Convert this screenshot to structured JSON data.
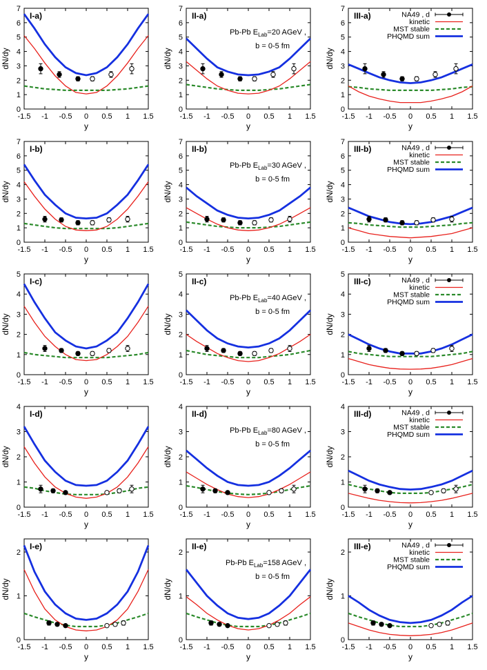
{
  "figure": {
    "x_label": "y",
    "y_label": "dN/dy",
    "legend_labels": [
      "NA49 , d",
      "kinetic",
      "MST stable",
      "PHQMD sum"
    ],
    "annotation_system": "Pb-Pb E",
    "annotation_sub": "Lab",
    "annotation_impact": "b = 0-5 fm",
    "colors": {
      "data": "#000000",
      "kinetic": "#e8201b",
      "mst": "#2a8a2a",
      "phqmd": "#1530e0"
    }
  },
  "chart_data": [
    {
      "type": "line",
      "row_label": "a",
      "energy": "20 AGeV",
      "ylim": [
        0,
        7
      ],
      "yticks": [
        0,
        1,
        2,
        3,
        4,
        5,
        6,
        7
      ],
      "xlim": [
        -1.5,
        1.5
      ],
      "xticks": [
        "-1.5",
        "-1",
        "-0.5",
        "0",
        "0.5",
        "1",
        "1.5"
      ],
      "data_points_filled": {
        "x": [
          -1.1,
          -0.65,
          -0.2
        ],
        "y": [
          2.8,
          2.4,
          2.1
        ],
        "err": [
          0.35,
          0.2,
          0.15
        ]
      },
      "data_points_open": {
        "x": [
          0.15,
          0.6,
          1.1
        ],
        "y": [
          2.1,
          2.4,
          2.8
        ],
        "err": [
          0.15,
          0.2,
          0.35
        ]
      },
      "panels": [
        {
          "label": "I-a)",
          "kinetic": [
            5.1,
            4.2,
            3.2,
            2.3,
            1.6,
            1.15,
            1.05,
            1.15,
            1.6,
            2.3,
            3.2,
            4.2,
            5.1
          ],
          "mst": [
            1.6,
            1.5,
            1.4,
            1.35,
            1.3,
            1.3,
            1.3,
            1.3,
            1.3,
            1.35,
            1.4,
            1.5,
            1.6
          ],
          "phqmd": [
            6.6,
            5.6,
            4.5,
            3.6,
            2.9,
            2.5,
            2.35,
            2.5,
            2.9,
            3.6,
            4.5,
            5.6,
            6.6
          ]
        },
        {
          "label": "II-a)",
          "kinetic": [
            3.3,
            2.7,
            2.1,
            1.6,
            1.3,
            1.1,
            1.05,
            1.1,
            1.3,
            1.6,
            2.1,
            2.7,
            3.3
          ],
          "mst": [
            1.7,
            1.6,
            1.5,
            1.4,
            1.35,
            1.3,
            1.3,
            1.3,
            1.35,
            1.4,
            1.5,
            1.6,
            1.7
          ],
          "phqmd": [
            4.9,
            4.2,
            3.5,
            2.9,
            2.6,
            2.4,
            2.35,
            2.4,
            2.6,
            2.9,
            3.5,
            4.2,
            4.9
          ]
        },
        {
          "label": "III-a)",
          "kinetic": [
            1.6,
            1.2,
            0.9,
            0.7,
            0.55,
            0.45,
            0.45,
            0.45,
            0.55,
            0.7,
            0.9,
            1.2,
            1.6
          ],
          "mst": [
            1.55,
            1.5,
            1.4,
            1.35,
            1.3,
            1.3,
            1.3,
            1.3,
            1.3,
            1.35,
            1.4,
            1.5,
            1.55
          ],
          "phqmd": [
            3.1,
            2.8,
            2.5,
            2.2,
            2.0,
            1.85,
            1.8,
            1.85,
            2.0,
            2.2,
            2.5,
            2.8,
            3.1
          ]
        }
      ]
    },
    {
      "type": "line",
      "row_label": "b",
      "energy": "30 AGeV",
      "ylim": [
        0,
        7
      ],
      "yticks": [
        0,
        1,
        2,
        3,
        4,
        5,
        6,
        7
      ],
      "xlim": [
        -1.5,
        1.5
      ],
      "xticks": [
        "-1.5",
        "-1",
        "-0.5",
        "0",
        "0.5",
        "1",
        "1.5"
      ],
      "data_points_filled": {
        "x": [
          -1.0,
          -0.6,
          -0.2
        ],
        "y": [
          1.6,
          1.55,
          1.35
        ],
        "err": [
          0.2,
          0.15,
          0.15
        ]
      },
      "data_points_open": {
        "x": [
          0.15,
          0.55,
          1.0
        ],
        "y": [
          1.35,
          1.55,
          1.6
        ],
        "err": [
          0.15,
          0.15,
          0.2
        ]
      },
      "panels": [
        {
          "label": "I-b)",
          "kinetic": [
            4.2,
            3.2,
            2.3,
            1.6,
            1.1,
            0.85,
            0.8,
            0.85,
            1.1,
            1.6,
            2.3,
            3.2,
            4.2
          ],
          "mst": [
            1.3,
            1.2,
            1.1,
            1.0,
            0.95,
            0.95,
            0.95,
            0.95,
            0.95,
            1.0,
            1.1,
            1.2,
            1.3
          ],
          "phqmd": [
            5.4,
            4.3,
            3.3,
            2.6,
            2.0,
            1.7,
            1.65,
            1.7,
            2.0,
            2.6,
            3.3,
            4.3,
            5.4
          ]
        },
        {
          "label": "II-b)",
          "kinetic": [
            2.4,
            2.0,
            1.6,
            1.25,
            1.0,
            0.85,
            0.8,
            0.85,
            1.0,
            1.25,
            1.6,
            2.0,
            2.4
          ],
          "mst": [
            1.4,
            1.3,
            1.2,
            1.1,
            1.05,
            1.0,
            1.0,
            1.0,
            1.05,
            1.1,
            1.2,
            1.3,
            1.4
          ],
          "phqmd": [
            3.8,
            3.2,
            2.7,
            2.2,
            1.9,
            1.7,
            1.65,
            1.7,
            1.9,
            2.2,
            2.7,
            3.2,
            3.8
          ]
        },
        {
          "label": "III-b)",
          "kinetic": [
            1.0,
            0.8,
            0.6,
            0.5,
            0.4,
            0.35,
            0.3,
            0.35,
            0.4,
            0.5,
            0.6,
            0.8,
            1.0
          ],
          "mst": [
            1.35,
            1.3,
            1.2,
            1.15,
            1.1,
            1.05,
            1.05,
            1.05,
            1.1,
            1.15,
            1.2,
            1.3,
            1.35
          ],
          "phqmd": [
            2.4,
            2.1,
            1.8,
            1.6,
            1.4,
            1.3,
            1.25,
            1.3,
            1.4,
            1.6,
            1.8,
            2.1,
            2.4
          ]
        }
      ]
    },
    {
      "type": "line",
      "row_label": "c",
      "energy": "40 AGeV",
      "ylim": [
        0,
        5
      ],
      "yticks": [
        0,
        1,
        2,
        3,
        4,
        5
      ],
      "xlim": [
        -1.5,
        1.5
      ],
      "xticks": [
        "-1.5",
        "-1",
        "-0.5",
        "0",
        "0.5",
        "1",
        "1.5"
      ],
      "data_points_filled": {
        "x": [
          -1.0,
          -0.6,
          -0.2
        ],
        "y": [
          1.3,
          1.2,
          1.05
        ],
        "err": [
          0.15,
          0.1,
          0.1
        ]
      },
      "data_points_open": {
        "x": [
          0.15,
          0.55,
          1.0
        ],
        "y": [
          1.05,
          1.2,
          1.3
        ],
        "err": [
          0.1,
          0.1,
          0.15
        ]
      },
      "panels": [
        {
          "label": "I-c)",
          "kinetic": [
            3.4,
            2.6,
            1.9,
            1.4,
            1.0,
            0.75,
            0.7,
            0.75,
            1.0,
            1.4,
            1.9,
            2.6,
            3.4
          ],
          "mst": [
            1.1,
            1.0,
            0.95,
            0.9,
            0.85,
            0.85,
            0.85,
            0.85,
            0.85,
            0.9,
            0.95,
            1.0,
            1.1
          ],
          "phqmd": [
            4.5,
            3.6,
            2.8,
            2.1,
            1.7,
            1.4,
            1.3,
            1.4,
            1.7,
            2.1,
            2.8,
            3.6,
            4.5
          ]
        },
        {
          "label": "II-c)",
          "kinetic": [
            2.0,
            1.65,
            1.35,
            1.05,
            0.85,
            0.7,
            0.65,
            0.7,
            0.85,
            1.05,
            1.35,
            1.65,
            2.0
          ],
          "mst": [
            1.2,
            1.1,
            1.0,
            0.95,
            0.9,
            0.85,
            0.85,
            0.85,
            0.9,
            0.95,
            1.0,
            1.1,
            1.2
          ],
          "phqmd": [
            3.2,
            2.7,
            2.2,
            1.8,
            1.55,
            1.4,
            1.35,
            1.4,
            1.55,
            1.8,
            2.2,
            2.7,
            3.2
          ]
        },
        {
          "label": "III-c)",
          "kinetic": [
            0.8,
            0.65,
            0.5,
            0.4,
            0.32,
            0.28,
            0.27,
            0.28,
            0.32,
            0.4,
            0.5,
            0.65,
            0.8
          ],
          "mst": [
            1.15,
            1.05,
            1.0,
            0.95,
            0.9,
            0.9,
            0.9,
            0.9,
            0.9,
            0.95,
            1.0,
            1.05,
            1.15
          ],
          "phqmd": [
            2.0,
            1.75,
            1.5,
            1.3,
            1.15,
            1.05,
            1.05,
            1.05,
            1.15,
            1.3,
            1.5,
            1.75,
            2.0
          ]
        }
      ]
    },
    {
      "type": "line",
      "row_label": "d",
      "energy": "80 AGeV",
      "ylim": [
        0,
        4
      ],
      "yticks": [
        0,
        1,
        2,
        3,
        4
      ],
      "xlim": [
        -1.5,
        1.5
      ],
      "xticks": [
        "-1.5",
        "-1",
        "-0.5",
        "0",
        "0.5",
        "1",
        "1.5"
      ],
      "data_points_filled": {
        "x": [
          -1.1,
          -0.8,
          -0.5
        ],
        "y": [
          0.72,
          0.65,
          0.58
        ],
        "err": [
          0.15,
          0.08,
          0.06
        ]
      },
      "data_points_open": {
        "x": [
          0.5,
          0.8,
          1.1
        ],
        "y": [
          0.58,
          0.65,
          0.72
        ],
        "err": [
          0.06,
          0.08,
          0.15
        ]
      },
      "panels": [
        {
          "label": "I-d)",
          "kinetic": [
            2.4,
            1.75,
            1.2,
            0.8,
            0.55,
            0.4,
            0.35,
            0.4,
            0.55,
            0.8,
            1.2,
            1.75,
            2.4
          ],
          "mst": [
            0.8,
            0.75,
            0.65,
            0.58,
            0.52,
            0.5,
            0.5,
            0.5,
            0.52,
            0.58,
            0.65,
            0.75,
            0.8
          ],
          "phqmd": [
            3.2,
            2.5,
            1.85,
            1.4,
            1.05,
            0.88,
            0.85,
            0.88,
            1.05,
            1.4,
            1.85,
            2.5,
            3.2
          ]
        },
        {
          "label": "II-d)",
          "kinetic": [
            1.4,
            1.15,
            0.9,
            0.7,
            0.52,
            0.42,
            0.38,
            0.42,
            0.52,
            0.7,
            0.9,
            1.15,
            1.4
          ],
          "mst": [
            0.85,
            0.78,
            0.7,
            0.62,
            0.56,
            0.52,
            0.5,
            0.52,
            0.56,
            0.62,
            0.7,
            0.78,
            0.85
          ],
          "phqmd": [
            2.25,
            1.9,
            1.55,
            1.25,
            1.0,
            0.88,
            0.85,
            0.88,
            1.0,
            1.25,
            1.55,
            1.9,
            2.25
          ]
        },
        {
          "label": "III-d)",
          "kinetic": [
            0.55,
            0.45,
            0.35,
            0.27,
            0.22,
            0.18,
            0.17,
            0.18,
            0.22,
            0.27,
            0.35,
            0.45,
            0.55
          ],
          "mst": [
            0.9,
            0.8,
            0.72,
            0.65,
            0.58,
            0.55,
            0.55,
            0.55,
            0.58,
            0.65,
            0.72,
            0.8,
            0.9
          ],
          "phqmd": [
            1.45,
            1.25,
            1.05,
            0.9,
            0.8,
            0.72,
            0.7,
            0.72,
            0.8,
            0.9,
            1.05,
            1.25,
            1.45
          ]
        }
      ]
    },
    {
      "type": "line",
      "row_label": "e",
      "energy": "158 AGeV",
      "ylim": [
        0,
        2.3
      ],
      "yticks": [
        0,
        1,
        2
      ],
      "xlim": [
        -1.5,
        1.5
      ],
      "xticks": [
        "-1.5",
        "-1",
        "-0.5",
        "0",
        "0.5",
        "1",
        "1.5"
      ],
      "data_points_filled": {
        "x": [
          -0.9,
          -0.7,
          -0.5
        ],
        "y": [
          0.38,
          0.35,
          0.32
        ],
        "err": [
          0.05,
          0.04,
          0.03
        ]
      },
      "data_points_open": {
        "x": [
          0.5,
          0.7,
          0.9
        ],
        "y": [
          0.32,
          0.35,
          0.38
        ],
        "err": [
          0.03,
          0.04,
          0.05
        ]
      },
      "panels": [
        {
          "label": "I-e)",
          "kinetic": [
            1.6,
            1.1,
            0.7,
            0.45,
            0.3,
            0.22,
            0.2,
            0.22,
            0.3,
            0.45,
            0.7,
            1.1,
            1.6
          ],
          "mst": [
            0.6,
            0.52,
            0.45,
            0.38,
            0.33,
            0.3,
            0.3,
            0.3,
            0.33,
            0.38,
            0.45,
            0.52,
            0.6
          ],
          "phqmd": [
            2.15,
            1.55,
            1.1,
            0.8,
            0.6,
            0.48,
            0.45,
            0.48,
            0.6,
            0.8,
            1.1,
            1.55,
            2.15
          ]
        },
        {
          "label": "II-e)",
          "kinetic": [
            0.98,
            0.8,
            0.6,
            0.45,
            0.33,
            0.25,
            0.22,
            0.25,
            0.33,
            0.45,
            0.6,
            0.8,
            0.98
          ],
          "mst": [
            0.6,
            0.52,
            0.45,
            0.38,
            0.33,
            0.3,
            0.3,
            0.3,
            0.33,
            0.38,
            0.45,
            0.52,
            0.6
          ],
          "phqmd": [
            1.6,
            1.3,
            1.0,
            0.78,
            0.6,
            0.5,
            0.47,
            0.5,
            0.6,
            0.78,
            1.0,
            1.3,
            1.6
          ]
        },
        {
          "label": "III-e)",
          "kinetic": [
            0.38,
            0.3,
            0.22,
            0.16,
            0.12,
            0.1,
            0.09,
            0.1,
            0.12,
            0.16,
            0.22,
            0.3,
            0.38
          ],
          "mst": [
            0.6,
            0.52,
            0.45,
            0.38,
            0.33,
            0.3,
            0.3,
            0.3,
            0.33,
            0.38,
            0.45,
            0.52,
            0.6
          ],
          "phqmd": [
            1.0,
            0.85,
            0.68,
            0.55,
            0.45,
            0.4,
            0.38,
            0.4,
            0.45,
            0.55,
            0.68,
            0.85,
            1.0
          ]
        }
      ]
    }
  ]
}
